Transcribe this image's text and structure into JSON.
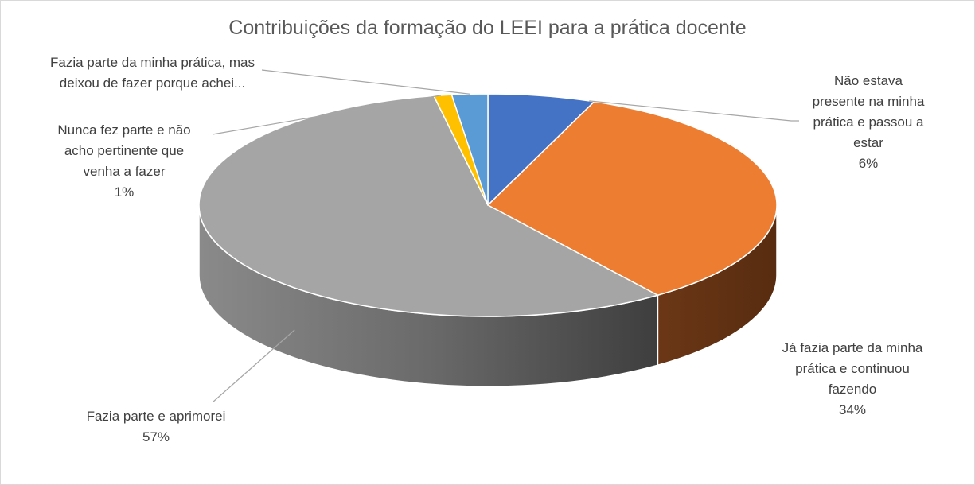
{
  "chart_data": {
    "type": "pie",
    "title": "Contribuições da formação do LEEI  para a prática docente",
    "slices": [
      {
        "label": "Não estava presente na minha prática e passou a estar",
        "display_lines": [
          "Não estava",
          "presente na minha",
          "prática e passou a",
          "estar"
        ],
        "value": 6,
        "percent_label": "6%",
        "color": "#4472c4",
        "side_color": "#2a4a82"
      },
      {
        "label": "Já fazia parte da minha prática e continuou fazendo",
        "display_lines": [
          "Já fazia parte da minha",
          "prática e continuou",
          "fazendo"
        ],
        "value": 34,
        "percent_label": "34%",
        "color": "#ed7d31",
        "side_color": "#633214"
      },
      {
        "label": "Fazia parte e aprimorei",
        "display_lines": [
          "Fazia parte e aprimorei"
        ],
        "value": 57,
        "percent_label": "57%",
        "color": "#a5a5a5",
        "side_color": "#6e6e6e"
      },
      {
        "label": "Nunca fez parte e não acho pertinente que venha a fazer",
        "display_lines": [
          "Nunca fez parte e não",
          "acho pertinente que",
          "venha a fazer"
        ],
        "value": 1,
        "percent_label": "1%",
        "color": "#ffc000",
        "side_color": "#a07800"
      },
      {
        "label": "Fazia parte da minha prática, mas deixou de fazer porque achei...",
        "display_lines": [
          "Fazia parte da minha prática, mas",
          "deixou de fazer porque achei..."
        ],
        "value": 2,
        "percent_label": "",
        "color": "#5b9bd5",
        "side_color": "#3a6a96"
      }
    ],
    "legend": "none",
    "style": "3d-pie",
    "data_labels": "outside with leader lines"
  }
}
